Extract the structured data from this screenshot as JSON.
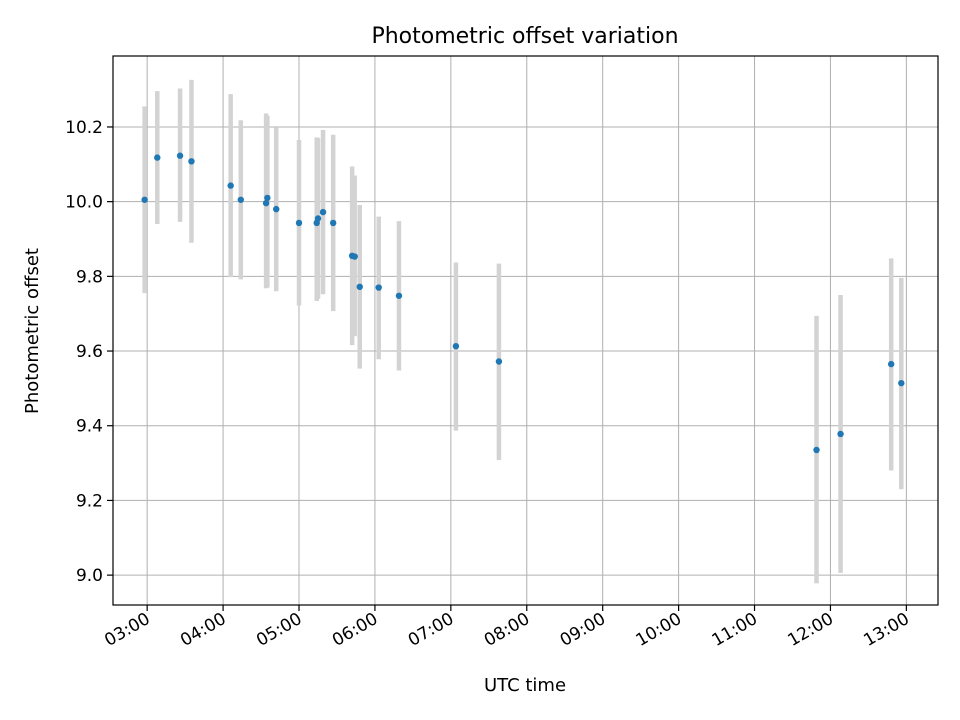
{
  "chart_data": {
    "type": "scatter",
    "title": "Photometric offset variation",
    "xlabel": "UTC time",
    "ylabel": "Photometric offset",
    "xlim": [
      "02:33",
      "13:25"
    ],
    "ylim": [
      8.92,
      10.39
    ],
    "grid": true,
    "x_ticks": [
      "03:00",
      "04:00",
      "05:00",
      "06:00",
      "07:00",
      "08:00",
      "09:00",
      "10:00",
      "11:00",
      "12:00",
      "13:00"
    ],
    "y_ticks": [
      9.0,
      9.2,
      9.4,
      9.6,
      9.8,
      10.0,
      10.2
    ],
    "y_tick_labels": [
      "9.0",
      "9.2",
      "9.4",
      "9.6",
      "9.8",
      "10.0",
      "10.2"
    ],
    "point_color": "#1f77b4",
    "errorbar_color": "#d3d3d3",
    "points": [
      {
        "x": "02:58",
        "y": 10.005,
        "ymin": 9.755,
        "ymax": 10.255
      },
      {
        "x": "03:08",
        "y": 10.118,
        "ymin": 9.94,
        "ymax": 10.296
      },
      {
        "x": "03:26",
        "y": 10.123,
        "ymin": 9.946,
        "ymax": 10.303
      },
      {
        "x": "03:35",
        "y": 10.108,
        "ymin": 9.89,
        "ymax": 10.326
      },
      {
        "x": "04:06",
        "y": 10.043,
        "ymin": 9.798,
        "ymax": 10.288
      },
      {
        "x": "04:14",
        "y": 10.005,
        "ymin": 9.792,
        "ymax": 10.218
      },
      {
        "x": "04:34",
        "y": 9.996,
        "ymin": 9.768,
        "ymax": 10.236
      },
      {
        "x": "04:35",
        "y": 10.01,
        "ymin": 9.77,
        "ymax": 10.23
      },
      {
        "x": "04:42",
        "y": 9.98,
        "ymin": 9.76,
        "ymax": 10.198
      },
      {
        "x": "05:00",
        "y": 9.943,
        "ymin": 9.722,
        "ymax": 10.165
      },
      {
        "x": "05:14",
        "y": 9.943,
        "ymin": 9.734,
        "ymax": 10.172
      },
      {
        "x": "05:15",
        "y": 9.955,
        "ymin": 9.74,
        "ymax": 10.17
      },
      {
        "x": "05:19",
        "y": 9.972,
        "ymin": 9.752,
        "ymax": 10.192
      },
      {
        "x": "05:27",
        "y": 9.943,
        "ymin": 9.707,
        "ymax": 10.179
      },
      {
        "x": "05:42",
        "y": 9.855,
        "ymin": 9.616,
        "ymax": 10.094
      },
      {
        "x": "05:44",
        "y": 9.853,
        "ymin": 9.64,
        "ymax": 10.07
      },
      {
        "x": "05:48",
        "y": 9.772,
        "ymin": 9.553,
        "ymax": 9.991
      },
      {
        "x": "06:03",
        "y": 9.77,
        "ymin": 9.578,
        "ymax": 9.96
      },
      {
        "x": "06:19",
        "y": 9.748,
        "ymin": 9.548,
        "ymax": 9.948
      },
      {
        "x": "07:04",
        "y": 9.613,
        "ymin": 9.387,
        "ymax": 9.837
      },
      {
        "x": "07:38",
        "y": 9.572,
        "ymin": 9.308,
        "ymax": 9.834
      },
      {
        "x": "11:49",
        "y": 9.335,
        "ymin": 8.978,
        "ymax": 9.694
      },
      {
        "x": "12:08",
        "y": 9.378,
        "ymin": 9.006,
        "ymax": 9.75
      },
      {
        "x": "12:48",
        "y": 9.565,
        "ymin": 9.28,
        "ymax": 9.848
      },
      {
        "x": "12:56",
        "y": 9.514,
        "ymin": 9.23,
        "ymax": 9.796
      }
    ]
  }
}
